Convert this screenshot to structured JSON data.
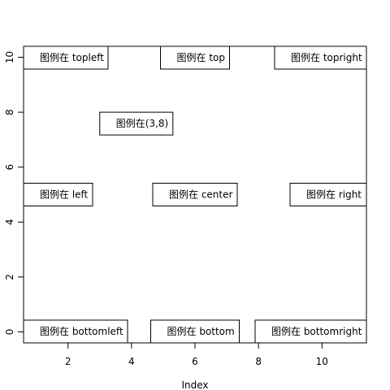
{
  "chart_data": {
    "type": "scatter",
    "title": "",
    "xlabel": "Index",
    "ylabel": "",
    "xlim": [
      0.6,
      11.4
    ],
    "ylim": [
      -0.4,
      10.4
    ],
    "x_ticks": [
      2,
      4,
      6,
      8,
      10
    ],
    "y_ticks": [
      0,
      2,
      4,
      6,
      8,
      10
    ],
    "grid": false,
    "points": [],
    "legends": [
      {
        "position": "topleft",
        "label": "图例在 topleft"
      },
      {
        "position": "top",
        "label": "图例在 top"
      },
      {
        "position": "topright",
        "label": "图例在 topright"
      },
      {
        "position": "xy",
        "x": 3,
        "y": 8,
        "label": "图例在(3,8)"
      },
      {
        "position": "left",
        "label": "图例在 left"
      },
      {
        "position": "center",
        "label": "图例在 center"
      },
      {
        "position": "right",
        "label": "图例在 right"
      },
      {
        "position": "bottomleft",
        "label": "图例在 bottomleft"
      },
      {
        "position": "bottom",
        "label": "图例在 bottom"
      },
      {
        "position": "bottomright",
        "label": "图例在 bottomright"
      }
    ]
  }
}
